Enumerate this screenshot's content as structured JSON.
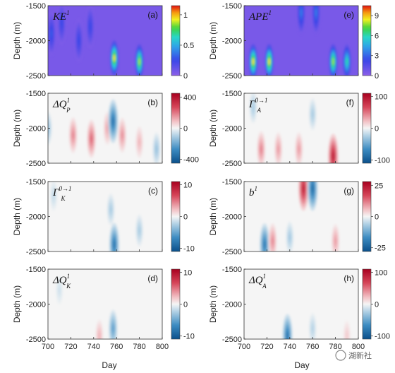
{
  "chart_data": {
    "type": "heatmap",
    "shared": {
      "xlabel": "Day",
      "ylabel": "Depth (m)",
      "xlim": [
        700,
        800
      ],
      "ylim": [
        -2500,
        -1500
      ],
      "xticks": [
        "700",
        "720",
        "740",
        "760",
        "780",
        "800"
      ],
      "yticks": [
        "-1500",
        "-2000",
        "-2500"
      ]
    },
    "panels": [
      {
        "id": "a",
        "letter": "(a)",
        "label": "KE",
        "sup": "1",
        "sub": "",
        "colorbar": {
          "ticks": [
            "1",
            "0.5",
            "0"
          ],
          "tick_values": [
            1,
            0.5,
            0
          ],
          "range": [
            0,
            1.15
          ],
          "scheme": "rainbow"
        },
        "features": [
          {
            "day": 703,
            "depth": -1900,
            "value": 0.35
          },
          {
            "day": 712,
            "depth": -1750,
            "value": 0.3
          },
          {
            "day": 727,
            "depth": -2000,
            "value": 0.3
          },
          {
            "day": 737,
            "depth": -1800,
            "value": 0.3
          },
          {
            "day": 758,
            "depth": -2250,
            "value": 1.1
          },
          {
            "day": 780,
            "depth": -2300,
            "value": 1.0
          }
        ]
      },
      {
        "id": "e",
        "letter": "(e)",
        "label": "APE",
        "sup": "1",
        "sub": "",
        "colorbar": {
          "ticks": [
            "9",
            "6",
            "3",
            "0"
          ],
          "tick_values": [
            9,
            6,
            3,
            0
          ],
          "range": [
            0,
            10.5
          ],
          "scheme": "rainbow"
        },
        "features": [
          {
            "day": 708,
            "depth": -2300,
            "value": 10
          },
          {
            "day": 722,
            "depth": -2300,
            "value": 10
          },
          {
            "day": 750,
            "depth": -1600,
            "value": 4
          },
          {
            "day": 763,
            "depth": -1600,
            "value": 4
          },
          {
            "day": 778,
            "depth": -2300,
            "value": 9
          },
          {
            "day": 790,
            "depth": -2300,
            "value": 7
          }
        ]
      },
      {
        "id": "b",
        "letter": "(b)",
        "label": "ΔQ",
        "sup": "1",
        "sub": "P",
        "colorbar": {
          "ticks": [
            "400",
            "0",
            "-400"
          ],
          "tick_values": [
            400,
            0,
            -400
          ],
          "range": [
            -450,
            450
          ],
          "scheme": "diverging"
        },
        "features": [
          {
            "day": 722,
            "depth": -2100,
            "value": 200
          },
          {
            "day": 738,
            "depth": -2150,
            "value": 250
          },
          {
            "day": 752,
            "depth": -2000,
            "value": 150
          },
          {
            "day": 765,
            "depth": -2100,
            "value": 180
          },
          {
            "day": 780,
            "depth": -2200,
            "value": 120
          },
          {
            "day": 757,
            "depth": -1900,
            "value": -380
          },
          {
            "day": 700,
            "depth": -2000,
            "value": -150
          },
          {
            "day": 795,
            "depth": -2300,
            "value": -150
          }
        ]
      },
      {
        "id": "f",
        "letter": "(f)",
        "label": "Γ",
        "sup": "0→1",
        "sub": "A",
        "colorbar": {
          "ticks": [
            "100",
            "0",
            "-100"
          ],
          "tick_values": [
            100,
            0,
            -100
          ],
          "range": [
            -110,
            110
          ],
          "scheme": "diverging"
        },
        "features": [
          {
            "day": 715,
            "depth": -2300,
            "value": 50
          },
          {
            "day": 730,
            "depth": -2300,
            "value": 40
          },
          {
            "day": 748,
            "depth": -2300,
            "value": 40
          },
          {
            "day": 778,
            "depth": -2400,
            "value": 100
          },
          {
            "day": 708,
            "depth": -1700,
            "value": -30
          },
          {
            "day": 760,
            "depth": -1800,
            "value": -30
          }
        ]
      },
      {
        "id": "c",
        "letter": "(c)",
        "label": "Γ",
        "sup": "0→1",
        "sub": "K",
        "colorbar": {
          "ticks": [
            "10",
            "0",
            "-10"
          ],
          "tick_values": [
            10,
            0,
            -10
          ],
          "range": [
            -11,
            11
          ],
          "scheme": "diverging"
        },
        "features": [
          {
            "day": 758,
            "depth": -2400,
            "value": -9
          },
          {
            "day": 755,
            "depth": -1900,
            "value": -3
          },
          {
            "day": 705,
            "depth": -1700,
            "value": -2
          },
          {
            "day": 780,
            "depth": -2200,
            "value": -3
          }
        ]
      },
      {
        "id": "g",
        "letter": "(g)",
        "label": "b",
        "sup": "1",
        "sub": "",
        "colorbar": {
          "ticks": [
            "25",
            "0",
            "-25"
          ],
          "tick_values": [
            25,
            0,
            -25
          ],
          "range": [
            -28,
            28
          ],
          "scheme": "diverging"
        },
        "features": [
          {
            "day": 752,
            "depth": -1600,
            "value": 25
          },
          {
            "day": 760,
            "depth": -1600,
            "value": -25
          },
          {
            "day": 718,
            "depth": -2400,
            "value": -22
          },
          {
            "day": 725,
            "depth": -2350,
            "value": 12
          },
          {
            "day": 780,
            "depth": -2350,
            "value": 10
          },
          {
            "day": 740,
            "depth": -2300,
            "value": -8
          }
        ]
      },
      {
        "id": "d",
        "letter": "(d)",
        "label": "ΔQ",
        "sup": "1",
        "sub": "K",
        "colorbar": {
          "ticks": [
            "10",
            "0",
            "-10"
          ],
          "tick_values": [
            10,
            0,
            -10
          ],
          "range": [
            -11,
            11
          ],
          "scheme": "diverging"
        },
        "features": [
          {
            "day": 757,
            "depth": -2350,
            "value": -6
          },
          {
            "day": 745,
            "depth": -2450,
            "value": 3
          },
          {
            "day": 710,
            "depth": -1800,
            "value": -1.5
          }
        ]
      },
      {
        "id": "h",
        "letter": "(h)",
        "label": "ΔQ",
        "sup": "1",
        "sub": "A",
        "colorbar": {
          "ticks": [
            "100",
            "0",
            "-100"
          ],
          "tick_values": [
            100,
            0,
            -100
          ],
          "range": [
            -110,
            110
          ],
          "scheme": "diverging"
        },
        "features": [
          {
            "day": 738,
            "depth": -2450,
            "value": -90
          },
          {
            "day": 760,
            "depth": -2350,
            "value": -25
          },
          {
            "day": 790,
            "depth": -2450,
            "value": 20
          }
        ]
      }
    ]
  },
  "watermark": "湖新社"
}
